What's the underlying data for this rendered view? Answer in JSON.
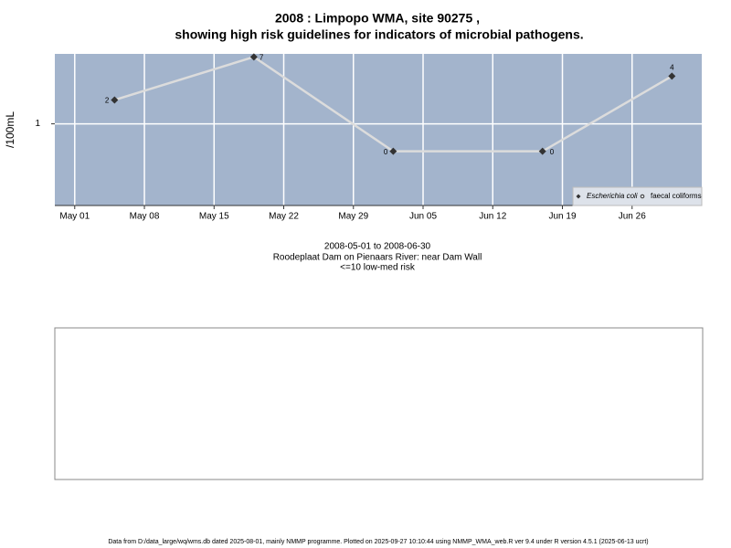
{
  "chart_data": {
    "type": "line",
    "title": "2008 : Limpopo WMA, site 90275 ,",
    "subtitle": "showing high risk guidelines for indicators of microbial pathogens.",
    "y_label": "/100mL",
    "x": [
      "2008-05-05",
      "2008-05-19",
      "2008-06-02",
      "2008-06-17",
      "2008-06-30"
    ],
    "series": [
      {
        "name": "Escherichia coli",
        "color": "#333333",
        "marker": "diamond",
        "values": [
          2,
          7,
          0.45,
          0.45,
          4
        ],
        "value_labels": [
          "2",
          "7",
          "0",
          "0",
          "4"
        ]
      },
      {
        "name": "faecal coliforms",
        "color": "#333333",
        "marker": "circle",
        "values": [
          null,
          null,
          null,
          null,
          null
        ]
      }
    ],
    "line_color": "#dcdcdc",
    "xlim": [
      "2008-04-29",
      "2008-07-03"
    ],
    "xticks": [
      {
        "value": "2008-05-01",
        "label": "May 01"
      },
      {
        "value": "2008-05-08",
        "label": "May 08"
      },
      {
        "value": "2008-05-15",
        "label": "May 15"
      },
      {
        "value": "2008-05-22",
        "label": "May 22"
      },
      {
        "value": "2008-05-29",
        "label": "May 29"
      },
      {
        "value": "2008-06-05",
        "label": "Jun 05"
      },
      {
        "value": "2008-06-12",
        "label": "Jun 12"
      },
      {
        "value": "2008-06-19",
        "label": "Jun 19"
      },
      {
        "value": "2008-06-26",
        "label": "Jun 26"
      }
    ],
    "ylim": [
      0.093,
      7.65
    ],
    "yticks": [
      1
    ],
    "log_y": true,
    "grid": true,
    "legend": "bottom-right",
    "notes": [
      "2008-05-01 to 2008-06-30",
      "Roodeplaat Dam on Pienaars River: near Dam Wall",
      "<=10 low-med risk"
    ],
    "footer": "Data from D:/data_large/wq/wms.db dated 2025-08-01, mainly NMMP programme. Plotted on 2025-09-27 10:10:44 using NMMP_WMA_web.R ver 9.4 under R version 4.5.1 (2025-06-13 ucrt)"
  }
}
